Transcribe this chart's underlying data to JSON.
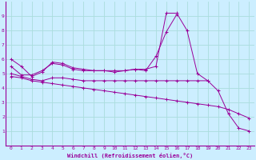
{
  "x": [
    0,
    1,
    2,
    3,
    4,
    5,
    6,
    7,
    8,
    9,
    10,
    11,
    12,
    13,
    14,
    15,
    16,
    17,
    18,
    19,
    20,
    21,
    22,
    23
  ],
  "line1": [
    6.0,
    5.5,
    4.8,
    5.1,
    5.8,
    5.7,
    5.4,
    5.3,
    5.2,
    5.2,
    5.2,
    5.2,
    5.3,
    5.3,
    5.5,
    9.2,
    9.2,
    8.0,
    5.0,
    4.5,
    3.8,
    2.2,
    1.2,
    1.0
  ],
  "line2": [
    5.5,
    4.9,
    4.9,
    5.2,
    5.7,
    5.6,
    5.3,
    5.2,
    5.2,
    5.2,
    5.1,
    5.2,
    5.3,
    5.2,
    6.2,
    7.9,
    9.1,
    null,
    null,
    null,
    null,
    null,
    null,
    null
  ],
  "line3": [
    5.0,
    4.8,
    4.6,
    4.5,
    4.7,
    4.7,
    4.6,
    4.5,
    4.5,
    4.5,
    4.5,
    4.5,
    4.5,
    4.5,
    4.5,
    4.5,
    4.5,
    4.5,
    4.5,
    4.5,
    null,
    null,
    null,
    null
  ],
  "line4": [
    4.8,
    4.7,
    4.5,
    4.4,
    4.3,
    4.2,
    4.1,
    4.0,
    3.9,
    3.8,
    3.7,
    3.6,
    3.5,
    3.4,
    3.3,
    3.2,
    3.1,
    3.0,
    2.9,
    2.8,
    2.7,
    2.5,
    2.2,
    1.9
  ],
  "line_color": "#990099",
  "bg_color": "#cceeff",
  "grid_color": "#aadddd",
  "ylim": [
    0,
    10
  ],
  "xlim": [
    -0.5,
    23.5
  ],
  "xlabel": "Windchill (Refroidissement éolien,°C)",
  "yticks": [
    1,
    2,
    3,
    4,
    5,
    6,
    7,
    8,
    9
  ],
  "xticks": [
    0,
    1,
    2,
    3,
    4,
    5,
    6,
    7,
    8,
    9,
    10,
    11,
    12,
    13,
    14,
    15,
    16,
    17,
    18,
    19,
    20,
    21,
    22,
    23
  ]
}
